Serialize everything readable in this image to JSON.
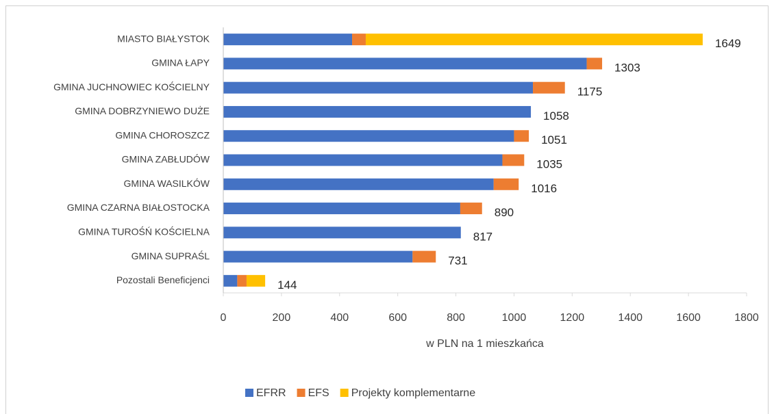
{
  "chart_data": {
    "type": "stacked_barh",
    "categories": [
      "MIASTO BIAŁYSTOK",
      "GMINA ŁAPY",
      "GMINA JUCHNOWIEC KOŚCIELNY",
      "GMINA DOBRZYNIEWO DUŻE",
      "GMINA CHOROSZCZ",
      "GMINA ZABŁUDÓW",
      "GMINA WASILKÓW",
      "GMINA CZARNA BIAŁOSTOCKA",
      "GMINA TUROŚŃ KOŚCIELNA",
      "GMINA SUPRAŚL",
      "Pozostali Beneficjenci"
    ],
    "series": [
      {
        "name": "EFRR",
        "color": "#4472c4",
        "values": [
          443,
          1250,
          1065,
          1058,
          1000,
          960,
          930,
          815,
          817,
          651,
          48
        ]
      },
      {
        "name": "EFS",
        "color": "#ed7d31",
        "values": [
          47,
          53,
          110,
          0,
          51,
          75,
          86,
          75,
          0,
          80,
          32
        ]
      },
      {
        "name": "Projekty komplementarne",
        "color": "#ffc000",
        "values": [
          1159,
          0,
          0,
          0,
          0,
          0,
          0,
          0,
          0,
          0,
          64
        ]
      }
    ],
    "totals": [
      1649,
      1303,
      1175,
      1058,
      1051,
      1035,
      1016,
      890,
      817,
      731,
      144
    ],
    "xlabel": "w PLN na 1 mieszkańca",
    "xlim": [
      0,
      1800
    ],
    "xticks": [
      0,
      200,
      400,
      600,
      800,
      1000,
      1200,
      1400,
      1600,
      1800
    ],
    "grid": false,
    "legend": "bottom"
  }
}
